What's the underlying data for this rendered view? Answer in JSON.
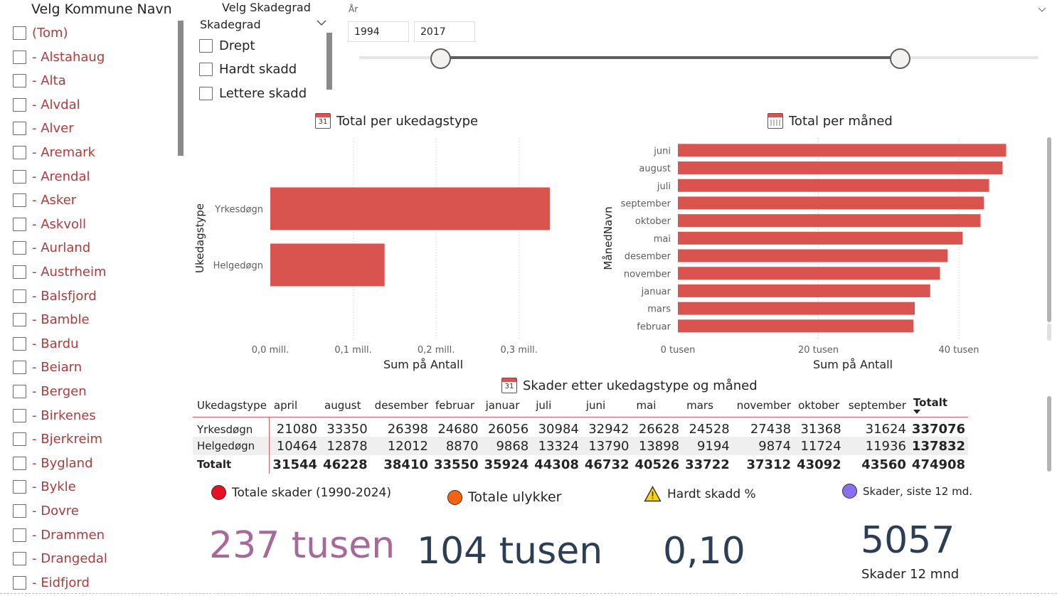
{
  "kommune_slicer": {
    "title": "Velg Kommune Navn",
    "items": [
      "(Tom)",
      "- Alstahaug",
      "- Alta",
      "- Alvdal",
      "- Alver",
      "- Aremark",
      "- Arendal",
      "- Asker",
      "- Askvoll",
      "- Aurland",
      "- Austrheim",
      "- Balsfjord",
      "- Bamble",
      "- Bardu",
      "- Beiarn",
      "- Bergen",
      "- Birkenes",
      "- Bjerkreim",
      "- Bygland",
      "- Bykle",
      "- Dovre",
      "- Drammen",
      "- Drangedal",
      "- Eidfjord"
    ]
  },
  "skadegrad_slicer": {
    "title": "Velg Skadegrad",
    "dropdown_label": "Skadegrad",
    "items": [
      "Drept",
      "Hardt skadd",
      "Lettere skadd"
    ]
  },
  "year_slider": {
    "title": "År",
    "start": "1994",
    "end": "2017"
  },
  "chart_weekday": {
    "title": "Total per ukedagstype",
    "icon": "calendar-31-icon",
    "icon_text": "31"
  },
  "chart_month": {
    "title": "Total per måned",
    "icon": "calendar-grid-icon"
  },
  "matrix": {
    "title": "Skader etter ukedagstype og måned",
    "icon_text": "31",
    "row_header": "Ukedagstype",
    "columns": [
      "april",
      "august",
      "desember",
      "februar",
      "januar",
      "juli",
      "juni",
      "mai",
      "mars",
      "november",
      "oktober",
      "september",
      "Totalt"
    ],
    "rows": [
      {
        "label": "Yrkesdøgn",
        "values": [
          "21080",
          "33350",
          "26398",
          "24680",
          "26056",
          "30984",
          "32942",
          "26628",
          "24528",
          "27438",
          "31368",
          "31624",
          "337076"
        ]
      },
      {
        "label": "Helgedøgn",
        "values": [
          "10464",
          "12878",
          "12012",
          "8870",
          "9868",
          "13324",
          "13790",
          "13898",
          "9194",
          "9874",
          "11724",
          "11936",
          "137832"
        ]
      },
      {
        "label": "Totalt",
        "values": [
          "31544",
          "46228",
          "38410",
          "33550",
          "35924",
          "44308",
          "46732",
          "40526",
          "33722",
          "37312",
          "43092",
          "43560",
          "474908"
        ]
      }
    ]
  },
  "kpis": [
    {
      "label": "Totale skader (1990-2024)",
      "value": "237 tusen",
      "dot_color": "#e81123",
      "value_color": "#a66999"
    },
    {
      "label": "Totale ulykker",
      "value": "104 tusen",
      "dot_color": "#f7630c",
      "value_color": "#2b3e55"
    },
    {
      "label": "Hardt skadd %",
      "value": "0,10",
      "icon": "warning-icon",
      "value_color": "#2b3e55"
    },
    {
      "label": "Skader, siste 12 md.",
      "value": "5057",
      "sublabel": "Skader 12 mnd",
      "dot_color": "#8a6ef0",
      "value_color": "#2b3e55"
    }
  ],
  "colors": {
    "bar": "#d9534f",
    "accent_text": "#b03b3b"
  },
  "chart_data": [
    {
      "type": "bar",
      "orientation": "horizontal",
      "title": "Total per ukedagstype",
      "categories": [
        "Yrkesdøgn",
        "Helgedøgn"
      ],
      "values": [
        337076,
        137832
      ],
      "xlabel": "Sum på Antall",
      "ylabel": "Ukedagstype",
      "x_ticks": [
        "0,0 mill.",
        "0,1 mill.",
        "0,2 mill.",
        "0,3 mill."
      ],
      "xlim": [
        0,
        350000
      ],
      "grid": "vertical dotted"
    },
    {
      "type": "bar",
      "orientation": "horizontal",
      "title": "Total per måned",
      "categories": [
        "juni",
        "august",
        "juli",
        "september",
        "oktober",
        "mai",
        "desember",
        "november",
        "januar",
        "mars",
        "februar"
      ],
      "values": [
        46732,
        46228,
        44308,
        43560,
        43092,
        40526,
        38410,
        37312,
        35924,
        33722,
        33550
      ],
      "xlabel": "Sum på Antall",
      "ylabel": "MånedNavn",
      "x_ticks": [
        "0 tusen",
        "20 tusen",
        "40 tusen"
      ],
      "xlim": [
        0,
        48000
      ],
      "grid": "vertical dotted"
    }
  ]
}
